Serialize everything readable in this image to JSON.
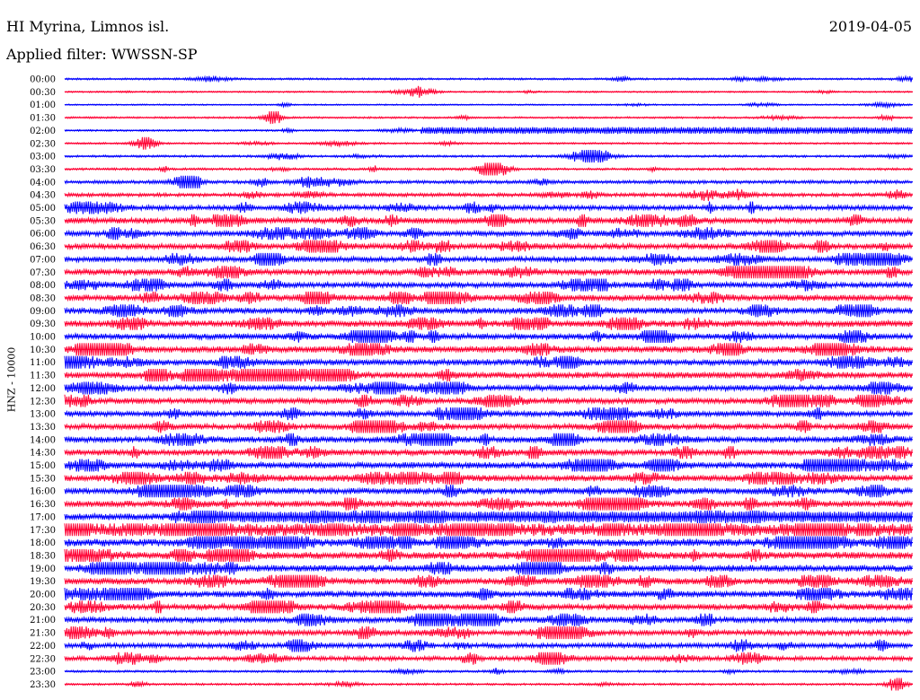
{
  "header": {
    "station": "HI Myrina, Limnos isl.",
    "date": "2019-04-05",
    "filter": "Applied filter: WWSSN-SP"
  },
  "channel_label": "HNZ - 10000",
  "colors": {
    "blue": "#0000ff",
    "red": "#ff0033"
  },
  "chart_data": {
    "type": "line",
    "plot_kind": "helicorder",
    "trace_colors_cycle": [
      "#0000ff",
      "#ff0033"
    ],
    "rows": [
      {
        "label": "00:00",
        "level": 0.06
      },
      {
        "label": "00:30",
        "level": 0.03
      },
      {
        "label": "01:00",
        "level": 0.02
      },
      {
        "label": "01:30",
        "level": 0.05
      },
      {
        "label": "02:00",
        "level": 0.05,
        "band": {
          "from": 0.42,
          "to": 1.0,
          "amp": 3.5
        }
      },
      {
        "label": "02:30",
        "level": 0.05
      },
      {
        "label": "03:00",
        "level": 0.08
      },
      {
        "label": "03:30",
        "level": 0.09
      },
      {
        "label": "04:00",
        "level": 0.16
      },
      {
        "label": "04:30",
        "level": 0.18
      },
      {
        "label": "05:00",
        "level": 0.27
      },
      {
        "label": "05:30",
        "level": 0.34
      },
      {
        "label": "06:00",
        "level": 0.3
      },
      {
        "label": "06:30",
        "level": 0.33
      },
      {
        "label": "07:00",
        "level": 0.3
      },
      {
        "label": "07:30",
        "level": 0.34
      },
      {
        "label": "08:00",
        "level": 0.33
      },
      {
        "label": "08:30",
        "level": 0.37
      },
      {
        "label": "09:00",
        "level": 0.36
      },
      {
        "label": "09:30",
        "level": 0.37
      },
      {
        "label": "10:00",
        "level": 0.35
      },
      {
        "label": "10:30",
        "level": 0.38
      },
      {
        "label": "11:00",
        "level": 0.36
      },
      {
        "label": "11:30",
        "level": 0.37
      },
      {
        "label": "12:00",
        "level": 0.34
      },
      {
        "label": "12:30",
        "level": 0.32
      },
      {
        "label": "13:00",
        "level": 0.32
      },
      {
        "label": "13:30",
        "level": 0.33
      },
      {
        "label": "14:00",
        "level": 0.36
      },
      {
        "label": "14:30",
        "level": 0.35
      },
      {
        "label": "15:00",
        "level": 0.38
      },
      {
        "label": "15:30",
        "level": 0.38
      },
      {
        "label": "16:00",
        "level": 0.37
      },
      {
        "label": "16:30",
        "level": 0.38
      },
      {
        "label": "17:00",
        "level": 0.4,
        "band": {
          "from": 0.16,
          "to": 1.0,
          "amp": 5.5
        }
      },
      {
        "label": "17:30",
        "level": 0.85
      },
      {
        "label": "18:00",
        "level": 0.48
      },
      {
        "label": "18:30",
        "level": 0.44
      },
      {
        "label": "19:00",
        "level": 0.42
      },
      {
        "label": "19:30",
        "level": 0.38
      },
      {
        "label": "20:00",
        "level": 0.38
      },
      {
        "label": "20:30",
        "level": 0.35
      },
      {
        "label": "21:00",
        "level": 0.33
      },
      {
        "label": "21:30",
        "level": 0.3
      },
      {
        "label": "22:00",
        "level": 0.27
      },
      {
        "label": "22:30",
        "level": 0.24
      },
      {
        "label": "23:00",
        "level": 0.08
      },
      {
        "label": "23:30",
        "level": 0.07
      }
    ]
  }
}
